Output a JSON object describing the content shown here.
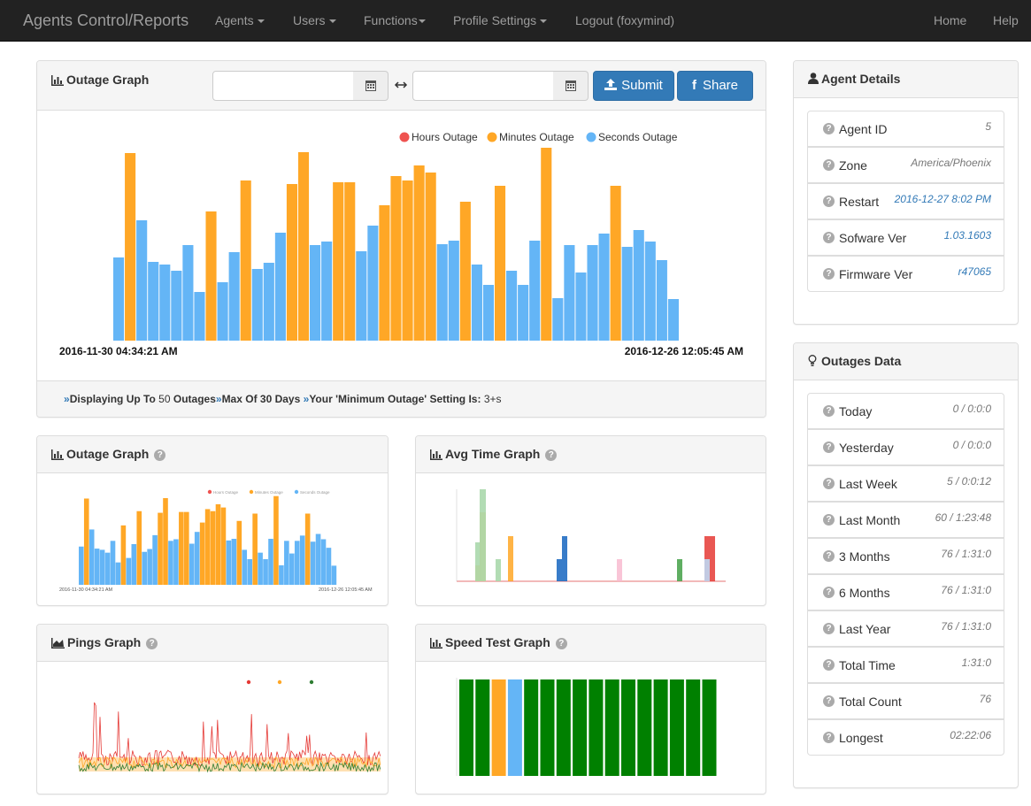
{
  "navbar": {
    "brand": "Agents Control/Reports",
    "items": [
      "Agents",
      "Users",
      "Functions",
      "Profile Settings"
    ],
    "logout": "Logout (foxymind)",
    "home": "Home",
    "help": "Help"
  },
  "main_panel": {
    "title": "Outage Graph",
    "start_date": {
      "value": "",
      "placeholder": ""
    },
    "end_date": {
      "value": "",
      "placeholder": ""
    },
    "submit_label": "Submit",
    "share_label": "Share",
    "start_label": "2016-11-30 04:34:21 AM",
    "end_label": "2016-12-26 12:05:45 AM",
    "footer": {
      "part1_prefix": "Displaying Up To",
      "part1_value": "50",
      "part1_suffix": "Outages",
      "part2": "Max Of 30 Days",
      "part3_prefix": "Your 'Minimum Outage' Setting Is:",
      "part3_value": "3+s"
    }
  },
  "chart_data": {
    "type": "bar",
    "title": "",
    "legend_position": "top-right",
    "series": [
      {
        "name": "Hours Outage",
        "color": "#ef5350",
        "values": []
      },
      {
        "name": "Minutes Outage",
        "color": "#ffa726",
        "values": [
          0,
          212,
          0,
          0,
          0,
          0,
          0,
          0,
          146,
          0,
          0,
          181,
          0,
          0,
          0,
          177,
          213,
          0,
          0,
          179,
          179,
          0,
          0,
          153,
          186,
          181,
          198,
          190,
          0,
          0,
          157,
          0,
          0,
          175,
          0,
          0,
          0,
          218,
          0,
          0,
          0,
          0,
          0,
          175,
          0,
          0,
          0,
          0,
          0,
          0
        ]
      },
      {
        "name": "Seconds Outage",
        "color": "#64b5f6",
        "values": [
          94,
          0,
          136,
          89,
          86,
          79,
          108,
          55,
          0,
          66,
          100,
          0,
          81,
          88,
          122,
          0,
          0,
          108,
          112,
          0,
          0,
          101,
          130,
          0,
          0,
          0,
          0,
          0,
          109,
          113,
          0,
          86,
          63,
          109,
          79,
          63,
          113,
          0,
          48,
          108,
          77,
          108,
          121,
          0,
          106,
          125,
          112,
          91,
          47,
          0
        ]
      }
    ],
    "x_start": "2016-11-30 04:34:21 AM",
    "x_end": "2016-12-26 12:05:45 AM"
  },
  "mini_panels": {
    "outage": {
      "title": "Outage Graph"
    },
    "avg": {
      "title": "Avg Time Graph"
    },
    "pings": {
      "title": "Pings Graph"
    },
    "speed": {
      "title": "Speed Test Graph"
    }
  },
  "agent_details": {
    "title": "Agent Details",
    "items": [
      {
        "label": "Agent ID",
        "value": "5",
        "link": false
      },
      {
        "label": "Zone",
        "value": "America/Phoenix",
        "link": false
      },
      {
        "label": "Restart",
        "value": "2016-12-27 8:02 PM",
        "link": true
      },
      {
        "label": "Sofware Ver",
        "value": "1.03.1603",
        "link": true
      },
      {
        "label": "Firmware Ver",
        "value": "r47065",
        "link": true
      }
    ]
  },
  "outages_data": {
    "title": "Outages Data",
    "items": [
      {
        "label": "Today",
        "value": "0 / 0:0:0"
      },
      {
        "label": "Yesterday",
        "value": "0 / 0:0:0"
      },
      {
        "label": "Last Week",
        "value": "5 / 0:0:12"
      },
      {
        "label": "Last Month",
        "value": "60 / 1:23:48"
      },
      {
        "label": "3 Months",
        "value": "76 / 1:31:0"
      },
      {
        "label": "6 Months",
        "value": "76 / 1:31:0"
      },
      {
        "label": "Last Year",
        "value": "76 / 1:31:0"
      },
      {
        "label": "Total Time",
        "value": "1:31:0"
      },
      {
        "label": "Total Count",
        "value": "76"
      },
      {
        "label": "Longest",
        "value": "02:22:06"
      }
    ]
  },
  "colors": {
    "navbar_bg": "#222222",
    "primary": "#337ab7",
    "hours": "#ef5350",
    "minutes": "#ffa726",
    "seconds": "#64b5f6",
    "speed_green": "#008000"
  },
  "icons": {
    "calendar": "calendar-icon",
    "upload": "upload-icon",
    "facebook": "facebook-icon",
    "user": "user-icon",
    "lightbulb": "lightbulb-icon",
    "help": "question-circle-icon"
  }
}
